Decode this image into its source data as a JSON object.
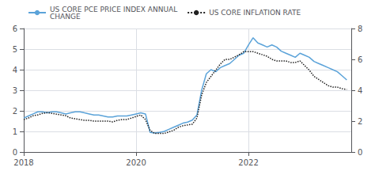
{
  "chart_data": {
    "type": "line",
    "x": [
      2018.0,
      2018.083,
      2018.167,
      2018.25,
      2018.333,
      2018.417,
      2018.5,
      2018.583,
      2018.667,
      2018.75,
      2018.833,
      2018.917,
      2019.0,
      2019.083,
      2019.167,
      2019.25,
      2019.333,
      2019.417,
      2019.5,
      2019.583,
      2019.667,
      2019.75,
      2019.833,
      2019.917,
      2020.0,
      2020.083,
      2020.167,
      2020.25,
      2020.333,
      2020.417,
      2020.5,
      2020.583,
      2020.667,
      2020.75,
      2020.833,
      2020.917,
      2021.0,
      2021.083,
      2021.167,
      2021.25,
      2021.333,
      2021.417,
      2021.5,
      2021.583,
      2021.667,
      2021.75,
      2021.833,
      2021.917,
      2022.0,
      2022.083,
      2022.167,
      2022.25,
      2022.333,
      2022.417,
      2022.5,
      2022.583,
      2022.667,
      2022.75,
      2022.833,
      2022.917,
      2023.0,
      2023.083,
      2023.167,
      2023.25,
      2023.333,
      2023.417,
      2023.5,
      2023.583,
      2023.667,
      2023.75
    ],
    "series": [
      {
        "name": "US CORE PCE PRICE INDEX ANNUAL\nCHANGE",
        "color": "#5ba3d9",
        "line_style": "solid",
        "values": [
          1.65,
          1.75,
          1.85,
          1.95,
          1.95,
          1.9,
          1.95,
          1.95,
          1.9,
          1.85,
          1.9,
          1.95,
          1.95,
          1.9,
          1.85,
          1.8,
          1.8,
          1.75,
          1.7,
          1.7,
          1.75,
          1.75,
          1.75,
          1.8,
          1.85,
          1.9,
          1.85,
          0.95,
          0.92,
          0.95,
          1.0,
          1.1,
          1.2,
          1.3,
          1.4,
          1.45,
          1.55,
          1.8,
          3.0,
          3.8,
          4.0,
          3.9,
          4.1,
          4.2,
          4.3,
          4.5,
          4.7,
          4.8,
          5.2,
          5.55,
          5.3,
          5.2,
          5.1,
          5.2,
          5.1,
          4.9,
          4.8,
          4.7,
          4.6,
          4.8,
          4.7,
          4.6,
          4.4,
          4.3,
          4.2,
          4.1,
          4.0,
          3.9,
          3.7,
          3.5
        ]
      },
      {
        "name": "US CORE INFLATION RATE",
        "color": "#222222",
        "line_style": "dotted",
        "axis": "y2",
        "values": [
          2.1,
          2.2,
          2.35,
          2.4,
          2.5,
          2.55,
          2.5,
          2.45,
          2.4,
          2.35,
          2.2,
          2.15,
          2.1,
          2.05,
          2.05,
          2.0,
          2.0,
          2.0,
          2.0,
          1.95,
          2.05,
          2.1,
          2.1,
          2.2,
          2.3,
          2.4,
          2.1,
          1.4,
          1.2,
          1.2,
          1.2,
          1.3,
          1.4,
          1.6,
          1.7,
          1.75,
          1.8,
          2.2,
          3.7,
          4.5,
          4.9,
          5.3,
          5.7,
          6.0,
          6.0,
          6.15,
          6.3,
          6.5,
          6.5,
          6.5,
          6.4,
          6.3,
          6.2,
          6.0,
          5.9,
          5.9,
          5.9,
          5.8,
          5.8,
          5.9,
          5.6,
          5.3,
          4.9,
          4.7,
          4.5,
          4.3,
          4.2,
          4.2,
          4.1,
          4.05
        ]
      }
    ],
    "xlim": [
      2018,
      2023.83
    ],
    "xticks": [
      2018,
      2020,
      2022
    ],
    "ylim": [
      0,
      6
    ],
    "yticks": [
      0,
      1,
      2,
      3,
      4,
      5,
      6
    ],
    "y2lim": [
      0,
      8
    ],
    "y2ticks": [
      0,
      2,
      4,
      6,
      8
    ],
    "grid": true,
    "legend": "upper left"
  }
}
